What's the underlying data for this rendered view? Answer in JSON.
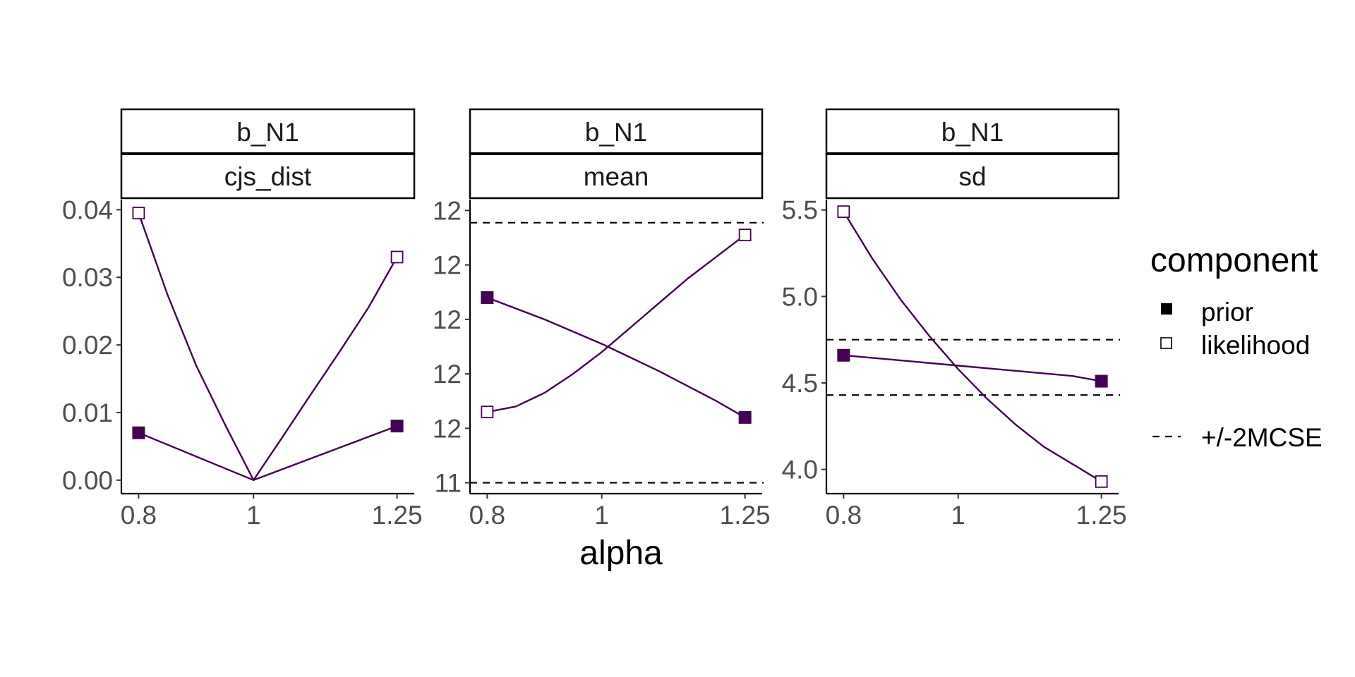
{
  "chart_data": {
    "type": "line",
    "xlabel": "alpha",
    "x": [
      0.8,
      0.85,
      0.9,
      0.95,
      1,
      1.05,
      1.1,
      1.15,
      1.2,
      1.25
    ],
    "x_tick_labels": [
      "0.8",
      "1",
      "1.25"
    ],
    "colors": {
      "line": "#440154",
      "prior_fill": "#440154",
      "likelihood_fill": "#ffffff",
      "mcse": "#000000"
    },
    "legend": {
      "title": "component",
      "position": "right",
      "entries": [
        {
          "label": "prior",
          "shape": "filled-square"
        },
        {
          "label": "likelihood",
          "shape": "open-square"
        }
      ],
      "mcse_label": "+/-2MCSE"
    },
    "panels": [
      {
        "strip_top": "b_N1",
        "strip_bottom": "cjs_dist",
        "y_ticks": [
          "0.00",
          "0.01",
          "0.02",
          "0.03",
          "0.04"
        ],
        "y_tick_values": [
          0,
          0.01,
          0.02,
          0.03,
          0.04
        ],
        "ylim": [
          -0.002,
          0.0415
        ],
        "series": [
          {
            "name": "prior",
            "x": [
              0.8,
              1,
              1.25
            ],
            "values": [
              0.007,
              0,
              0.008
            ],
            "markers_x": [
              0.8,
              1.25
            ],
            "markers": [
              0.007,
              0.008
            ]
          },
          {
            "name": "likelihood",
            "x": [
              0.8,
              0.85,
              0.9,
              0.95,
              1,
              1.05,
              1.1,
              1.15,
              1.2,
              1.25
            ],
            "values": [
              0.0395,
              0.0275,
              0.017,
              0.0083,
              0,
              0.0063,
              0.0127,
              0.019,
              0.0255,
              0.033
            ],
            "markers_x": [
              0.8,
              1.25
            ],
            "markers": [
              0.0395,
              0.033
            ]
          }
        ],
        "mcse_lines": []
      },
      {
        "strip_top": "b_N1",
        "strip_bottom": "mean",
        "y_ticks": [
          "11",
          "12",
          "12",
          "12",
          "12",
          "12"
        ],
        "y_tick_values": [
          11.0,
          11.2,
          11.4,
          11.6,
          11.8,
          12.0
        ],
        "ylim": [
          10.96,
          12.04
        ],
        "series": [
          {
            "name": "prior",
            "x": [
              0.8,
              0.9,
              1,
              1.1,
              1.2,
              1.25
            ],
            "values": [
              11.68,
              11.6,
              11.51,
              11.41,
              11.3,
              11.24
            ],
            "markers_x": [
              0.8,
              1.25
            ],
            "markers": [
              11.68,
              11.24
            ]
          },
          {
            "name": "likelihood",
            "x": [
              0.8,
              0.85,
              0.9,
              0.95,
              1,
              1.05,
              1.1,
              1.15,
              1.2,
              1.25
            ],
            "values": [
              11.26,
              11.28,
              11.33,
              11.4,
              11.48,
              11.57,
              11.66,
              11.75,
              11.83,
              11.91
            ],
            "markers_x": [
              0.8,
              1.25
            ],
            "markers": [
              11.26,
              11.91
            ]
          }
        ],
        "mcse_lines": [
          11.0,
          11.955
        ]
      },
      {
        "strip_top": "b_N1",
        "strip_bottom": "sd",
        "y_ticks": [
          "4.0",
          "4.5",
          "5.0",
          "5.5"
        ],
        "y_tick_values": [
          4.0,
          4.5,
          5.0,
          5.5
        ],
        "ylim": [
          3.86,
          5.56
        ],
        "series": [
          {
            "name": "prior",
            "x": [
              0.8,
              0.9,
              1,
              1.1,
              1.2,
              1.25
            ],
            "values": [
              4.66,
              4.63,
              4.6,
              4.57,
              4.54,
              4.51
            ],
            "markers_x": [
              0.8,
              1.25
            ],
            "markers": [
              4.66,
              4.51
            ]
          },
          {
            "name": "likelihood",
            "x": [
              0.8,
              0.85,
              0.9,
              0.95,
              1,
              1.05,
              1.1,
              1.15,
              1.2,
              1.25
            ],
            "values": [
              5.49,
              5.22,
              4.98,
              4.77,
              4.58,
              4.41,
              4.26,
              4.13,
              4.03,
              3.93
            ],
            "markers_x": [
              0.8,
              1.25
            ],
            "markers": [
              5.49,
              3.93
            ]
          }
        ],
        "mcse_lines": [
          4.43,
          4.75
        ]
      }
    ]
  }
}
